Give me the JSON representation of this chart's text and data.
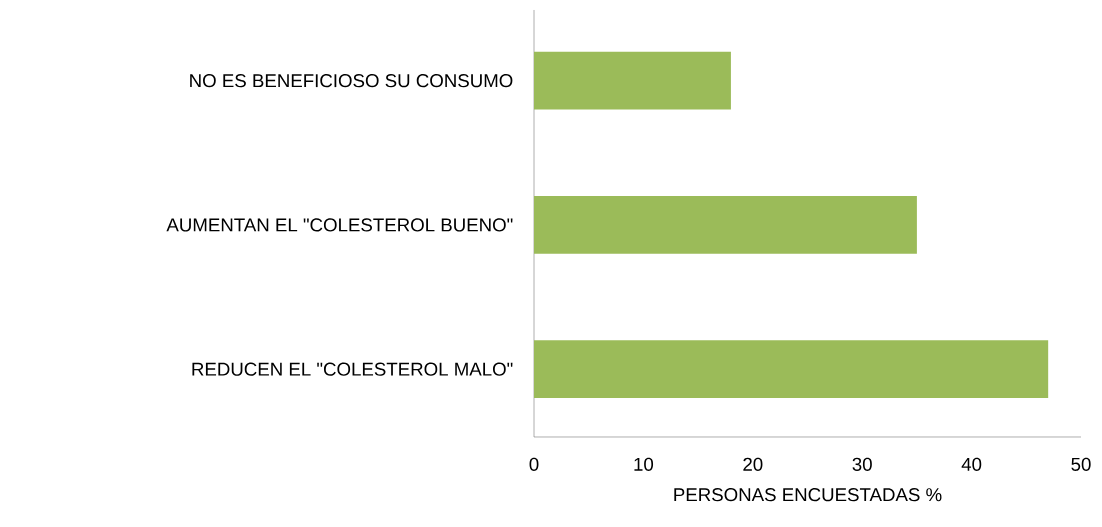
{
  "chart_data": {
    "type": "bar",
    "orientation": "horizontal",
    "categories": [
      "NO ES BENEFICIOSO SU CONSUMO",
      "AUMENTAN EL \"COLESTEROL BUENO\"",
      "REDUCEN EL \"COLESTEROL MALO\""
    ],
    "values": [
      18,
      35,
      47
    ],
    "color": "#9bbb59",
    "xlim": [
      0,
      50
    ],
    "xticks": [
      0,
      10,
      20,
      30,
      40,
      50
    ],
    "xlabel": "PERSONAS ENCUESTADAS %"
  }
}
